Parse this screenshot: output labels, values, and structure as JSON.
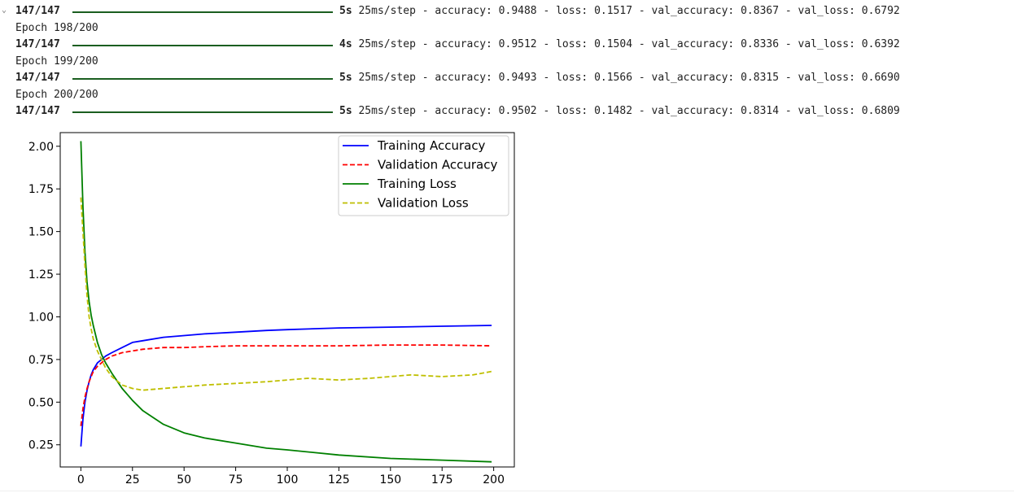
{
  "output_log": {
    "lines": [
      {
        "kind": "progress",
        "steps": "147/147",
        "time": "5s",
        "rest": " 25ms/step - accuracy: 0.9488 - loss: 0.1517 - val_accuracy: 0.8367 - val_loss: 0.6792"
      },
      {
        "kind": "epoch",
        "text": "Epoch 198/200"
      },
      {
        "kind": "progress",
        "steps": "147/147",
        "time": "4s",
        "rest": " 25ms/step - accuracy: 0.9512 - loss: 0.1504 - val_accuracy: 0.8336 - val_loss: 0.6392"
      },
      {
        "kind": "epoch",
        "text": "Epoch 199/200"
      },
      {
        "kind": "progress",
        "steps": "147/147",
        "time": "5s",
        "rest": " 25ms/step - accuracy: 0.9493 - loss: 0.1566 - val_accuracy: 0.8315 - val_loss: 0.6690"
      },
      {
        "kind": "epoch",
        "text": "Epoch 200/200"
      },
      {
        "kind": "progress",
        "steps": "147/147",
        "time": "5s",
        "rest": " 25ms/step - accuracy: 0.9502 - loss: 0.1482 - val_accuracy: 0.8314 - val_loss: 0.6809"
      }
    ],
    "progress_bar_color": "#1b5e20"
  },
  "chart_data": {
    "type": "line",
    "title": "",
    "xlabel": "",
    "ylabel": "",
    "xlim": [
      -10,
      210
    ],
    "ylim": [
      0.12,
      2.08
    ],
    "xticks": [
      0,
      25,
      50,
      75,
      100,
      125,
      150,
      175,
      200
    ],
    "yticks": [
      0.25,
      0.5,
      0.75,
      1.0,
      1.25,
      1.5,
      1.75,
      2.0
    ],
    "xtick_labels": [
      "0",
      "25",
      "50",
      "75",
      "100",
      "125",
      "150",
      "175",
      "200"
    ],
    "ytick_labels": [
      "0.25",
      "0.50",
      "0.75",
      "1.00",
      "1.25",
      "1.50",
      "1.75",
      "2.00"
    ],
    "grid": false,
    "legend_position": "top-right",
    "series": [
      {
        "name": "Training Accuracy",
        "color": "#0000ff",
        "dash": "solid",
        "x": [
          0,
          1,
          2,
          3,
          4,
          5,
          6,
          8,
          10,
          12,
          15,
          20,
          25,
          30,
          40,
          50,
          60,
          75,
          90,
          100,
          125,
          150,
          175,
          199
        ],
        "y": [
          0.24,
          0.4,
          0.5,
          0.57,
          0.62,
          0.66,
          0.69,
          0.73,
          0.75,
          0.77,
          0.79,
          0.82,
          0.85,
          0.86,
          0.88,
          0.89,
          0.9,
          0.91,
          0.92,
          0.925,
          0.935,
          0.94,
          0.945,
          0.95
        ]
      },
      {
        "name": "Validation Accuracy",
        "color": "#ff0000",
        "dash": "dashed",
        "x": [
          0,
          1,
          2,
          3,
          4,
          5,
          6,
          8,
          10,
          12,
          15,
          20,
          25,
          30,
          40,
          50,
          60,
          75,
          90,
          100,
          125,
          150,
          175,
          199
        ],
        "y": [
          0.36,
          0.46,
          0.53,
          0.58,
          0.62,
          0.65,
          0.68,
          0.71,
          0.73,
          0.75,
          0.77,
          0.79,
          0.8,
          0.81,
          0.82,
          0.82,
          0.825,
          0.83,
          0.83,
          0.83,
          0.83,
          0.835,
          0.835,
          0.83
        ]
      },
      {
        "name": "Training Loss",
        "color": "#008000",
        "dash": "solid",
        "x": [
          0,
          1,
          2,
          3,
          4,
          5,
          6,
          8,
          10,
          12,
          15,
          20,
          25,
          30,
          40,
          50,
          60,
          75,
          90,
          100,
          125,
          150,
          175,
          199
        ],
        "y": [
          2.03,
          1.65,
          1.38,
          1.2,
          1.09,
          1.01,
          0.95,
          0.85,
          0.78,
          0.73,
          0.67,
          0.58,
          0.51,
          0.45,
          0.37,
          0.32,
          0.29,
          0.26,
          0.23,
          0.22,
          0.19,
          0.17,
          0.16,
          0.15
        ]
      },
      {
        "name": "Validation Loss",
        "color": "#bfbf00",
        "dash": "dashed",
        "x": [
          0,
          1,
          2,
          3,
          4,
          5,
          6,
          8,
          10,
          12,
          15,
          20,
          25,
          30,
          40,
          50,
          60,
          75,
          90,
          100,
          110,
          125,
          140,
          150,
          160,
          175,
          190,
          199
        ],
        "y": [
          1.7,
          1.5,
          1.3,
          1.12,
          1.0,
          0.93,
          0.87,
          0.8,
          0.75,
          0.7,
          0.65,
          0.6,
          0.58,
          0.57,
          0.58,
          0.59,
          0.6,
          0.61,
          0.62,
          0.63,
          0.64,
          0.63,
          0.64,
          0.65,
          0.66,
          0.65,
          0.66,
          0.68
        ]
      }
    ]
  }
}
